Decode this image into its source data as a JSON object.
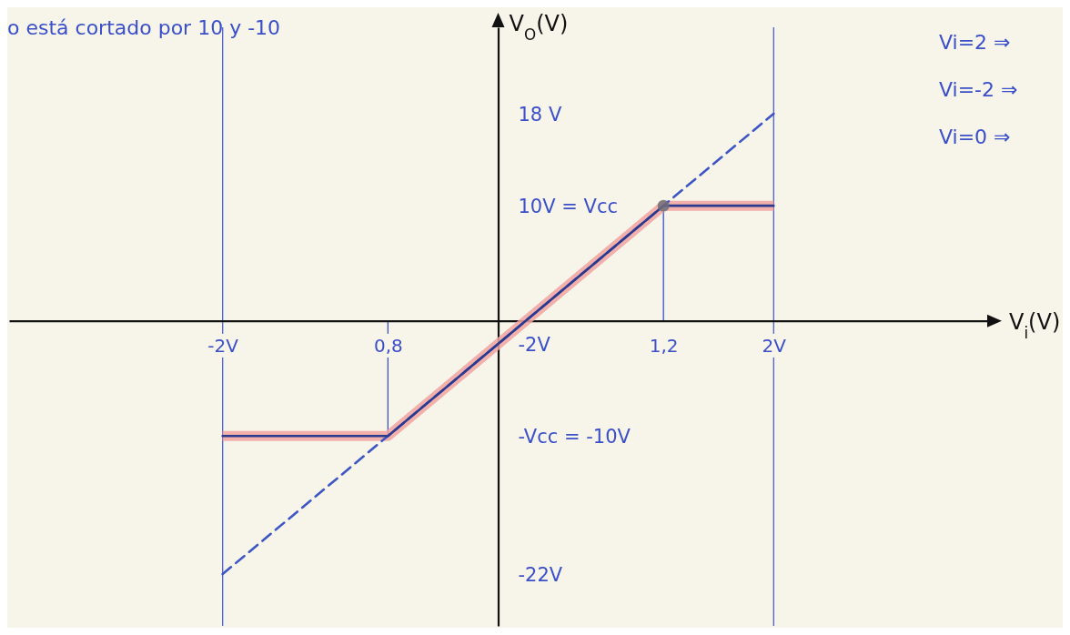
{
  "chart_data": {
    "type": "line",
    "xlabel": "V$_{i}$(V)",
    "ylabel": "V$_{O}$(V)",
    "xlim": [
      -3.55,
      3.55
    ],
    "ylim": [
      -26.5,
      25.5
    ],
    "xticks": [
      {
        "value": -2,
        "label": "-2V"
      },
      {
        "value": -0.8,
        "label": "0,8"
      },
      {
        "value": 1.2,
        "label": "1,2"
      },
      {
        "value": 2,
        "label": "2V"
      }
    ],
    "yticks": [
      {
        "value": 18,
        "label": "18 V"
      },
      {
        "value": 10,
        "label": "10V = Vcc"
      },
      {
        "value": -2,
        "label": "-2V"
      },
      {
        "value": -10,
        "label": "-Vcc = -10V"
      },
      {
        "value": -22,
        "label": "-22V"
      }
    ],
    "series": [
      {
        "color": "#f2a3a0",
        "x": [
          -2,
          -0.8,
          1.2,
          2
        ],
        "values": [
          -10,
          -10,
          10,
          10
        ]
      },
      {
        "color": "#3d56c4",
        "line_style": "dashed",
        "x": [
          -2,
          2
        ],
        "values": [
          -22,
          18
        ]
      },
      {
        "color": "#2a3a8e",
        "x": [
          -2,
          -0.8,
          1.2,
          2
        ],
        "values": [
          -10,
          -10,
          10,
          10
        ]
      },
      {
        "type": "scatter",
        "marker": "circle",
        "color": "#6f6f78",
        "x": [
          1.2
        ],
        "values": [
          10
        ]
      }
    ],
    "ref_lines": [
      {
        "axis": "x",
        "value": -2,
        "color": "#4a5fd0"
      },
      {
        "axis": "x",
        "value": 2,
        "color": "#4a5fd0"
      }
    ],
    "annotations": [
      "o está cortado por 10 y -10",
      "Vi=2 ⇒",
      "Vi=-2 ⇒",
      "Vi=0 ⇒"
    ]
  }
}
